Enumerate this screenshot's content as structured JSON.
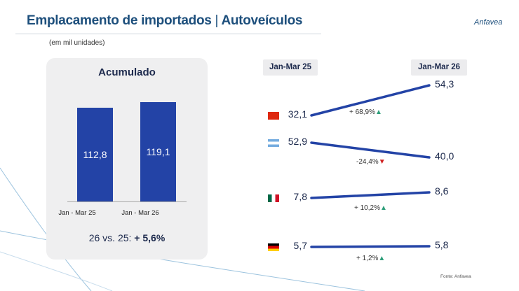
{
  "header": {
    "title_main": "Emplacamento de importados",
    "title_sep": "|",
    "title_sub": "Autoveículos",
    "logo": "Anfavea",
    "unit_note": "(em mil unidades)"
  },
  "chart_data": [
    {
      "type": "bar",
      "title": "Acumulado",
      "categories": [
        "Jan - Mar 25",
        "Jan - Mar 26"
      ],
      "values": [
        112.8,
        119.1
      ],
      "value_labels": [
        "112,8",
        "119,1"
      ],
      "comparison_prefix": "26 vs. 25:",
      "comparison_value": "+ 5,6%",
      "bar_color": "#2343a6"
    },
    {
      "type": "line",
      "subtype": "slope",
      "periods": [
        "Jan-Mar 25",
        "Jan-Mar 26"
      ],
      "series": [
        {
          "name": "China",
          "flag": "cn-flag",
          "values": [
            32.1,
            54.3
          ],
          "labels": [
            "32,1",
            "54,3"
          ],
          "change": "+ 68,9%",
          "direction": "up"
        },
        {
          "name": "Argentina",
          "flag": "ar-flag",
          "values": [
            52.9,
            40.0
          ],
          "labels": [
            "52,9",
            "40,0"
          ],
          "change": "-24,4%",
          "direction": "down"
        },
        {
          "name": "México",
          "flag": "mx-flag",
          "values": [
            7.8,
            8.6
          ],
          "labels": [
            "7,8",
            "8,6"
          ],
          "change": "+ 10,2%",
          "direction": "up"
        },
        {
          "name": "Alemanha",
          "flag": "de-flag",
          "values": [
            5.7,
            5.8
          ],
          "labels": [
            "5,7",
            "5,8"
          ],
          "change": "+ 1,2%",
          "direction": "up"
        }
      ],
      "line_color": "#2343a6",
      "up_color": "#2e9e7a",
      "down_color": "#d01f1f"
    }
  ],
  "footer": {
    "source": "Fonte: Anfavea"
  }
}
